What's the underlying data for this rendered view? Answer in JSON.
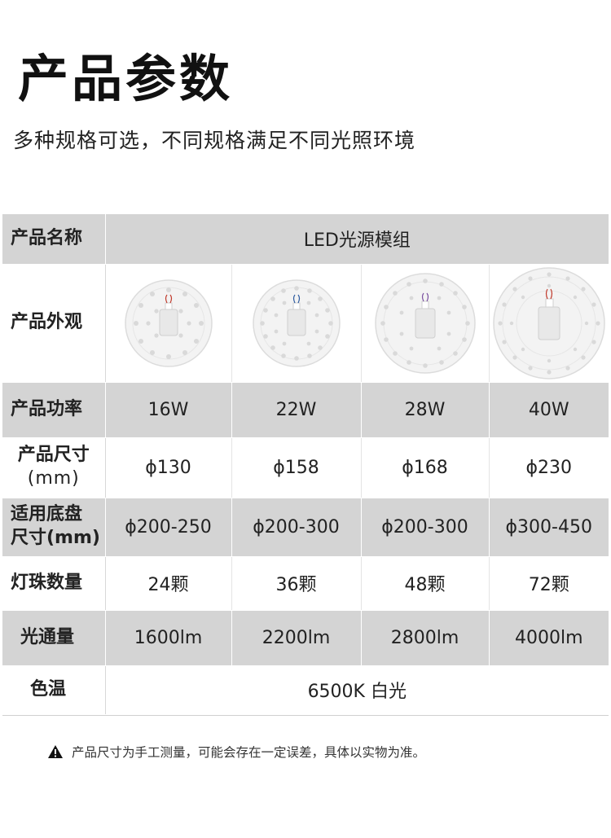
{
  "header": {
    "title": "产品参数",
    "subtitle": "多种规格可选，不同规格满足不同光照环境"
  },
  "table": {
    "rows": {
      "name": {
        "label": "产品名称",
        "value": "LED光源模组"
      },
      "appearance": {
        "label": "产品外观"
      },
      "power": {
        "label": "产品功率",
        "values": [
          "16W",
          "22W",
          "28W",
          "40W"
        ]
      },
      "size": {
        "label_line1": "产品尺寸",
        "label_line2": "(mm)",
        "values": [
          "ϕ130",
          "ϕ158",
          "ϕ168",
          "ϕ230"
        ]
      },
      "base": {
        "label_line1": "适用底盘",
        "label_line2": "尺寸(mm)",
        "values": [
          "ϕ200-250",
          "ϕ200-300",
          "ϕ200-300",
          "ϕ300-450"
        ]
      },
      "beads": {
        "label": "灯珠数量",
        "values": [
          "24颗",
          "36颗",
          "48颗",
          "72颗"
        ]
      },
      "flux": {
        "label": "光通量",
        "values": [
          "1600lm",
          "2200lm",
          "2800lm",
          "4000lm"
        ]
      },
      "color_temp": {
        "label": "色温",
        "value": "6500K 白光"
      }
    },
    "colors": {
      "gray_row": "#d4d4d4",
      "white_row": "#ffffff"
    }
  },
  "footer": {
    "warning_icon": "warning-triangle-icon",
    "note": "产品尺寸为手工测量，可能会存在一定误差，具体以实物为准。"
  }
}
